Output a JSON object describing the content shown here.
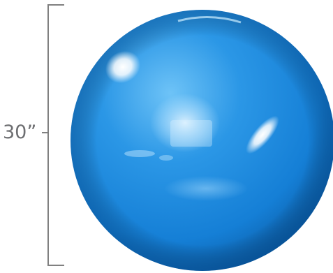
{
  "product": {
    "dimension_label": "30”",
    "colors": {
      "ball": "#1f8ee0",
      "ball_dark": "#0b5ea8",
      "ball_light": "#5db8f5",
      "bracket": "#7a7a7a",
      "label": "#6d6e71"
    }
  }
}
